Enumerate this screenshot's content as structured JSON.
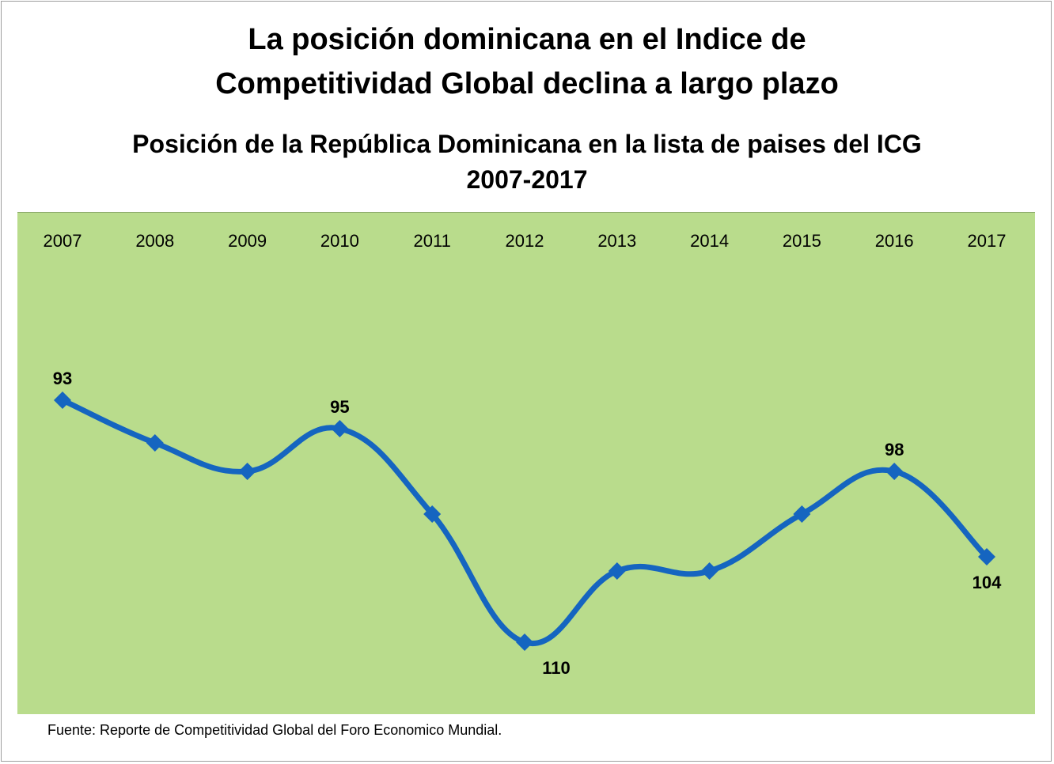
{
  "header": {
    "title_line1": "La posición dominicana en el Indice de",
    "title_line2": "Competitividad Global declina a largo plazo"
  },
  "chart_data": {
    "type": "line",
    "title": "Posición de la República Dominicana en la lista de paises del ICG",
    "subtitle": "2007-2017",
    "categories": [
      "2007",
      "2008",
      "2009",
      "2010",
      "2011",
      "2012",
      "2013",
      "2014",
      "2015",
      "2016",
      "2017"
    ],
    "series": [
      {
        "values": [
          93,
          96,
          98,
          95,
          101,
          110,
          105,
          105,
          101,
          98,
          104
        ],
        "color": "#1565c0"
      }
    ],
    "data_labels": [
      {
        "index": 0,
        "text": "93",
        "position": "above"
      },
      {
        "index": 3,
        "text": "95",
        "position": "above"
      },
      {
        "index": 5,
        "text": "110",
        "position": "below"
      },
      {
        "index": 9,
        "text": "98",
        "position": "above"
      },
      {
        "index": 10,
        "text": "104",
        "position": "below"
      }
    ],
    "y_axis": {
      "reversed": true,
      "visible": false,
      "range": [
        84,
        115
      ]
    },
    "x_axis_position": "top",
    "plot_background": "#b9dc8c",
    "grid": false,
    "legend": "none",
    "marker": "diamond",
    "smooth": true
  },
  "footer": {
    "source": "Fuente: Reporte de Competitividad Global del Foro Economico Mundial."
  }
}
